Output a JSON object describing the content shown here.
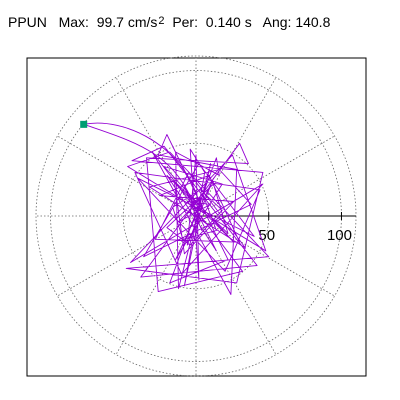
{
  "header": {
    "station": "PPUN",
    "max_label": "Max:",
    "max_value": "99.7",
    "max_unit": "cm/s",
    "max_unit_exponent": "2",
    "per_label": "Per:",
    "per_value": "0.140",
    "per_unit": "s",
    "ang_label": "Ang:",
    "ang_value": "140.8"
  },
  "colors": {
    "trace": "#9400d3",
    "endpoint": "#009e73",
    "frame": "#000000",
    "grid": "#666666"
  },
  "chart_data": {
    "type": "line",
    "title": "",
    "plot_kind": "polar particle-motion hodogram",
    "radial_max": 110,
    "radial_ticks": [
      50,
      100
    ],
    "radial_tick_labels": [
      "50",
      "100"
    ],
    "grid_rings": [
      50,
      100
    ],
    "grid_spokes_deg": [
      0,
      30,
      60,
      90,
      120,
      150,
      180,
      210,
      240,
      270,
      300,
      330
    ],
    "peak_vector": {
      "magnitude": 99.7,
      "angle_deg": 140.8
    },
    "endpoint_marker": {
      "x": -77.2,
      "y": 63.0
    },
    "series": [
      {
        "x": [
          0,
          8,
          -6,
          10,
          -12,
          5,
          14,
          -9,
          -16,
          3,
          18,
          -4,
          -20,
          12,
          22,
          -15,
          -8,
          26,
          -25,
          9,
          30,
          -28,
          -5,
          34,
          -32,
          16,
          38,
          -36,
          2,
          40,
          -40,
          20,
          44,
          -42,
          -10,
          46,
          -45,
          25,
          48,
          -47,
          -18,
          50,
          -48,
          28,
          46,
          -44,
          -22,
          42,
          -38,
          30,
          36,
          -34,
          -26,
          32,
          -30,
          24,
          28,
          -26,
          -20,
          22,
          -18,
          14,
          16,
          -14,
          -12,
          10,
          -8,
          6,
          -4,
          2,
          0,
          -6,
          12,
          -14,
          18,
          -22,
          26,
          -20,
          14,
          -8,
          4,
          0
        ],
        "y": [
          0,
          -6,
          10,
          8,
          -4,
          14,
          -10,
          -16,
          6,
          18,
          4,
          -20,
          -8,
          22,
          -12,
          24,
          -26,
          10,
          14,
          28,
          -18,
          -16,
          30,
          -22,
          20,
          32,
          8,
          -28,
          36,
          -14,
          26,
          -38,
          18,
          30,
          -40,
          22,
          -32,
          42,
          -24,
          34,
          44,
          -28,
          -36,
          -46,
          30,
          38,
          48,
          -34,
          -42,
          50,
          36,
          40,
          -52,
          -38,
          44,
          -54,
          32,
          42,
          56,
          -30,
          -46,
          40,
          28,
          44,
          -50,
          36,
          -48,
          30,
          46,
          -44,
          42,
          -20,
          26,
          -30,
          22,
          34,
          -18,
          28,
          -24,
          20,
          -10,
          0
        ]
      }
    ]
  }
}
